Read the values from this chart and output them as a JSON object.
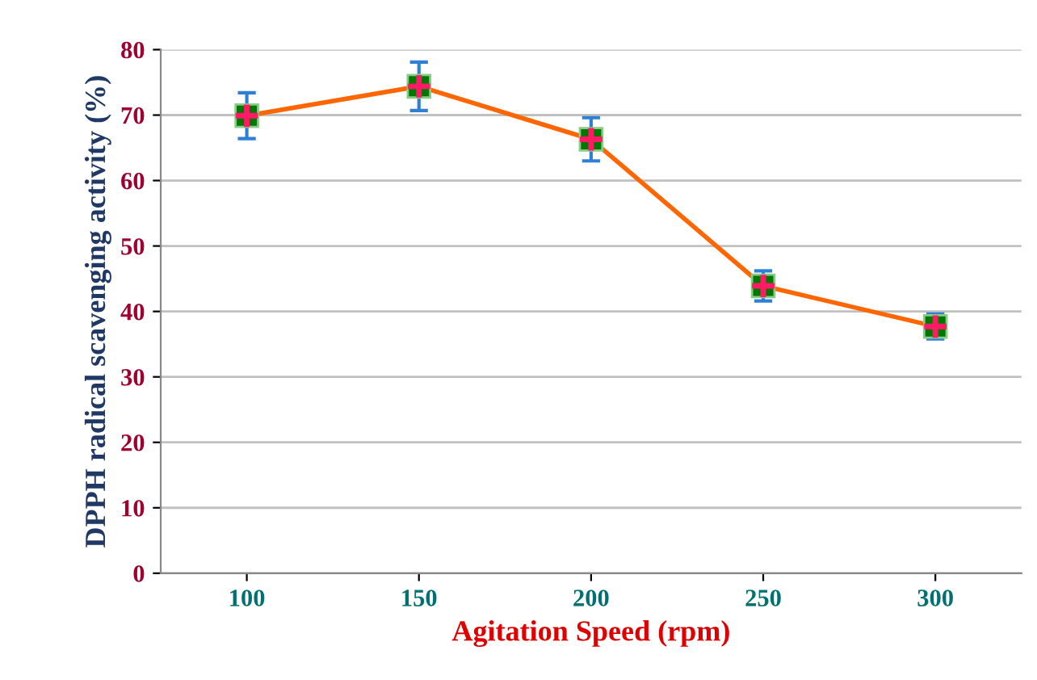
{
  "chart_data": {
    "type": "line",
    "xlabel": "Agitation Speed (rpm)",
    "ylabel": "DPPH radical scavenging activity (%)",
    "categories": [
      "100",
      "150",
      "200",
      "250",
      "300"
    ],
    "series": [
      {
        "color": "#ff6600",
        "values": [
          69.9,
          74.4,
          66.3,
          43.9,
          37.7
        ],
        "errors": [
          3.5,
          3.7,
          3.3,
          2.3,
          1.9
        ]
      }
    ],
    "ylim": [
      0,
      80
    ],
    "yticks": [
      0,
      10,
      20,
      30,
      40,
      50,
      60,
      70,
      80
    ],
    "grid": "y",
    "marker": "square",
    "line_style": "solid",
    "legend": false
  }
}
